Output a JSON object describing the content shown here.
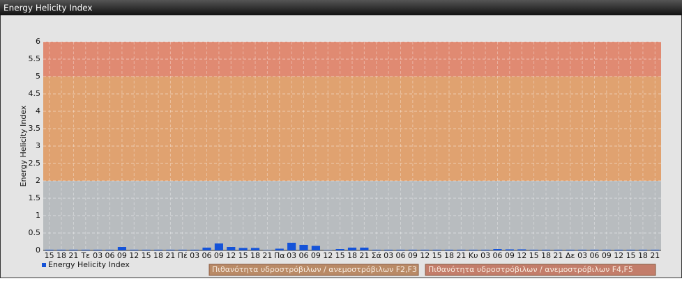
{
  "header": {
    "title": "Energy Helicity Index"
  },
  "chart_data": {
    "type": "bar",
    "y_label": "Energy Helicity Index",
    "categories": [
      "15",
      "18",
      "21",
      "Τε",
      "03",
      "06",
      "09",
      "12",
      "15",
      "18",
      "21",
      "Πέ",
      "03",
      "06",
      "09",
      "12",
      "15",
      "18",
      "21",
      "Πα",
      "03",
      "06",
      "09",
      "12",
      "15",
      "18",
      "21",
      "Σά",
      "03",
      "06",
      "09",
      "12",
      "15",
      "18",
      "21",
      "Κυ",
      "03",
      "06",
      "09",
      "12",
      "15",
      "18",
      "21",
      "Δε",
      "03",
      "06",
      "09",
      "12",
      "15",
      "18",
      "21"
    ],
    "series": [
      {
        "name": "Energy Helicity Index",
        "color": "#1553d8",
        "values": [
          0.02,
          0.02,
          0.02,
          0.02,
          0.02,
          0.02,
          0.1,
          0.02,
          0.02,
          0.02,
          0.02,
          0.02,
          0.02,
          0.08,
          0.2,
          0.1,
          0.07,
          0.07,
          0.01,
          0.05,
          0.22,
          0.16,
          0.13,
          0.01,
          0.04,
          0.08,
          0.08,
          0.02,
          0.02,
          0.02,
          0.02,
          0.02,
          0.02,
          0.02,
          0.02,
          0.02,
          0.02,
          0.04,
          0.03,
          0.03,
          0.02,
          0.02,
          0.02,
          0.02,
          0.02,
          0.02,
          0.02,
          0.02,
          0.02,
          0.02,
          0.02
        ]
      }
    ],
    "bands": [
      {
        "name": "Πιθανότητα υδροστρόβιλων / ανεμοστρόβιλων F2,F3",
        "from": 2,
        "to": 5,
        "color": "#e0a270",
        "legend_color": "#b98a66"
      },
      {
        "name": "Πιθανότητα υδροστρόβιλων / ανεμοστρόβιλων F4,F5",
        "from": 5,
        "to": 6,
        "color": "#e08a72",
        "legend_color": "#c37d6a"
      }
    ],
    "ylim": [
      0,
      6
    ],
    "yticks": [
      0,
      0.5,
      1,
      1.5,
      2,
      2.5,
      3,
      3.5,
      4,
      4.5,
      5,
      5.5,
      6
    ],
    "grid": true
  }
}
